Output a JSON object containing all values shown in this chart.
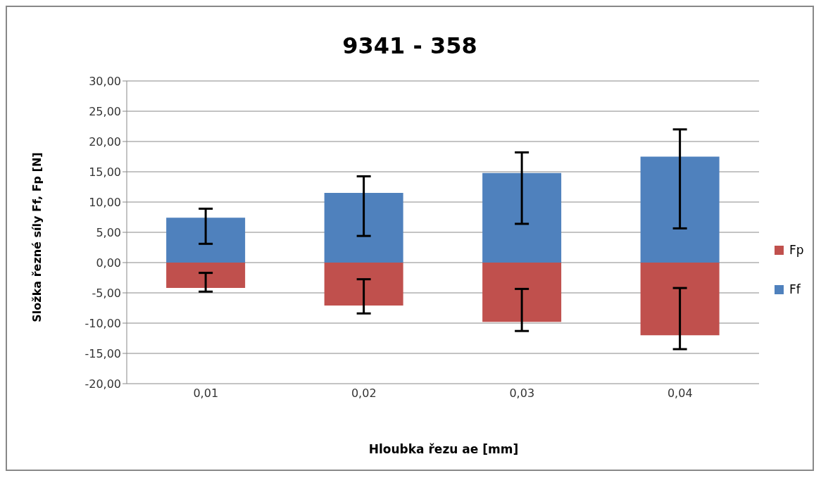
{
  "chart_data": {
    "type": "bar",
    "title": "9341 - 358",
    "xlabel": "Hloubka řezu ae [mm]",
    "ylabel": "Složka řezné síly Ff, Fp [N]",
    "categories": [
      "0,01",
      "0,02",
      "0,03",
      "0,04"
    ],
    "stacked": true,
    "series": [
      {
        "name": "Fp",
        "color": "#c0504d",
        "values": [
          -4.2,
          -7.1,
          -9.8,
          -12.0
        ],
        "errors": [
          [
            -4.8,
            -1.7
          ],
          [
            -8.4,
            -2.75
          ],
          [
            -11.3,
            -4.35
          ],
          [
            -14.3,
            -4.2
          ]
        ]
      },
      {
        "name": "Ff",
        "color": "#4f81bd",
        "values": [
          7.4,
          11.5,
          14.8,
          17.5
        ],
        "errors": [
          [
            3.1,
            8.9
          ],
          [
            4.4,
            14.25
          ],
          [
            6.4,
            18.2
          ],
          [
            5.65,
            22.0
          ]
        ]
      }
    ],
    "ylim": [
      -20,
      30
    ],
    "yticks": [
      {
        "value": -20,
        "label": "-20,00"
      },
      {
        "value": -15,
        "label": "-15,00"
      },
      {
        "value": -10,
        "label": "-10,00"
      },
      {
        "value": -5,
        "label": "-5,00"
      },
      {
        "value": 0,
        "label": "0,00"
      },
      {
        "value": 5,
        "label": "5,00"
      },
      {
        "value": 10,
        "label": "10,00"
      },
      {
        "value": 15,
        "label": "15,00"
      },
      {
        "value": 20,
        "label": "20,00"
      },
      {
        "value": 25,
        "label": "25,00"
      },
      {
        "value": 30,
        "label": "30,00"
      }
    ],
    "grid": "y",
    "legend": "right"
  }
}
